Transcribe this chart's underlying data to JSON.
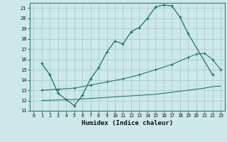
{
  "title": "",
  "xlabel": "Humidex (Indice chaleur)",
  "bg_color": "#cce8e8",
  "grid_color": "#aacccc",
  "line_color": "#1a7070",
  "xlim": [
    -0.5,
    23.5
  ],
  "ylim": [
    11,
    21.5
  ],
  "xticks": [
    0,
    1,
    2,
    3,
    4,
    5,
    6,
    7,
    8,
    9,
    10,
    11,
    12,
    13,
    14,
    15,
    16,
    17,
    18,
    19,
    20,
    21,
    22,
    23
  ],
  "yticks": [
    11,
    12,
    13,
    14,
    15,
    16,
    17,
    18,
    19,
    20,
    21
  ],
  "line1_x": [
    1,
    2,
    3,
    4,
    5,
    6,
    7,
    8,
    9,
    10,
    11,
    12,
    13,
    14,
    15,
    16,
    17,
    18,
    19,
    22
  ],
  "line1_y": [
    15.6,
    14.5,
    12.7,
    12.1,
    11.5,
    12.5,
    14.1,
    15.2,
    16.7,
    17.8,
    17.5,
    18.7,
    19.1,
    20.0,
    21.1,
    21.3,
    21.2,
    20.1,
    18.5,
    14.5
  ],
  "line2_x": [
    1,
    3,
    5,
    7,
    9,
    11,
    13,
    15,
    17,
    19,
    20,
    21,
    22,
    23
  ],
  "line2_y": [
    13.0,
    13.1,
    13.2,
    13.5,
    13.8,
    14.1,
    14.5,
    15.0,
    15.5,
    16.2,
    16.5,
    16.6,
    16.0,
    15.0
  ],
  "line3_x": [
    1,
    3,
    5,
    7,
    9,
    11,
    13,
    15,
    17,
    19,
    21,
    22,
    23
  ],
  "line3_y": [
    12.0,
    12.05,
    12.1,
    12.2,
    12.3,
    12.4,
    12.5,
    12.6,
    12.8,
    13.0,
    13.2,
    13.35,
    13.4
  ]
}
